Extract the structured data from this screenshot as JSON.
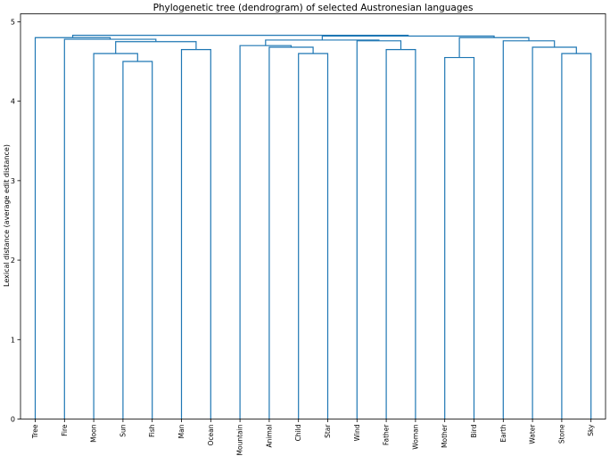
{
  "chart_data": {
    "type": "dendrogram",
    "title": "Phylogenetic tree (dendrogram) of selected Austronesian languages",
    "xlabel": "",
    "ylabel": "Lexical distance (average edit distance)",
    "ylim": [
      0,
      5.1
    ],
    "yticks": [
      "0",
      "1",
      "2",
      "3",
      "4",
      "5"
    ],
    "leaves": [
      "Tree",
      "Fire",
      "Moon",
      "Sun",
      "Fish",
      "Man",
      "Ocean",
      "Mountain",
      "Animal",
      "Child",
      "Star",
      "Wind",
      "Father",
      "Woman",
      "Mother",
      "Bird",
      "Earth",
      "Water",
      "Stone",
      "Sky"
    ],
    "link_color": "#1f77b4",
    "merges": [
      {
        "left": "Sun",
        "right": "Fish",
        "height": 4.5
      },
      {
        "left": "Moon",
        "right": "Sun+Fish",
        "height": 4.6
      },
      {
        "left": "Man",
        "right": "Ocean",
        "height": 4.65
      },
      {
        "left": "Moon+Sun+Fish",
        "right": "Man+Ocean",
        "height": 4.75
      },
      {
        "left": "Fire",
        "right": "Moon..Ocean",
        "height": 4.78
      },
      {
        "left": "Tree",
        "right": "Fire..Ocean",
        "height": 4.8
      },
      {
        "left": "Child",
        "right": "Star",
        "height": 4.6
      },
      {
        "left": "Animal",
        "right": "Child+Star",
        "height": 4.68
      },
      {
        "left": "Mountain",
        "right": "Animal..Star",
        "height": 4.7
      },
      {
        "left": "Father",
        "right": "Woman",
        "height": 4.65
      },
      {
        "left": "Wind",
        "right": "Father+Woman",
        "height": 4.76
      },
      {
        "left": "Mountain..Star",
        "right": "Wind..Woman",
        "height": 4.77
      },
      {
        "left": "Mother",
        "right": "Bird",
        "height": 4.55
      },
      {
        "left": "Stone",
        "right": "Sky",
        "height": 4.6
      },
      {
        "left": "Water",
        "right": "Stone+Sky",
        "height": 4.68
      },
      {
        "left": "Earth",
        "right": "Water..Sky",
        "height": 4.76
      },
      {
        "left": "Mother+Bird",
        "right": "Earth..Sky",
        "height": 4.8
      },
      {
        "left": "Mountain..Woman",
        "right": "Mother..Sky",
        "height": 4.82
      },
      {
        "left": "Tree..Ocean",
        "right": "Mountain..Sky",
        "height": 4.83
      }
    ]
  }
}
